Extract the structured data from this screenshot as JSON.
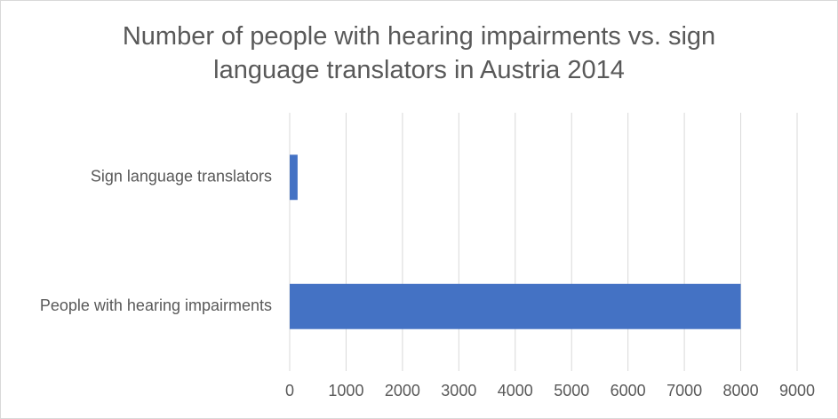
{
  "chart_data": {
    "type": "barh",
    "title": "Number of people with hearing impairments vs. sign language translators in Austria 2014",
    "categories": [
      "People with hearing impairments",
      "Sign language translators"
    ],
    "values": [
      8000,
      140
    ],
    "color": "#4472c4",
    "xlim": [
      0,
      9000
    ],
    "xticks": [
      0,
      1000,
      2000,
      3000,
      4000,
      5000,
      6000,
      7000,
      8000,
      9000
    ],
    "grid": true
  }
}
